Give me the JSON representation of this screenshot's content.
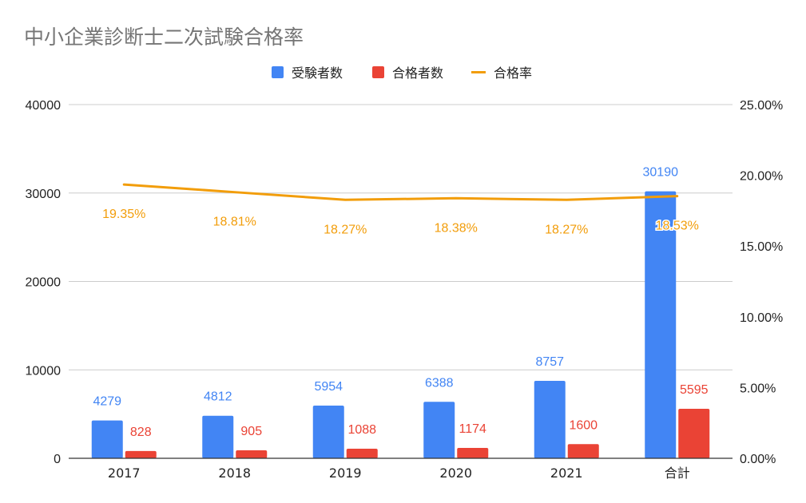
{
  "chart_data": {
    "type": "bar",
    "title": "中小企業診断士二次試験合格率",
    "categories": [
      "2017",
      "2018",
      "2019",
      "2020",
      "2021",
      "合計"
    ],
    "series": [
      {
        "name": "受験者数",
        "kind": "bar",
        "axis": "left",
        "color": "#4285f4",
        "values": [
          4279,
          4812,
          5954,
          6388,
          8757,
          30190
        ]
      },
      {
        "name": "合格者数",
        "kind": "bar",
        "axis": "left",
        "color": "#ea4335",
        "values": [
          828,
          905,
          1088,
          1174,
          1600,
          5595
        ]
      },
      {
        "name": "合格率",
        "kind": "line",
        "axis": "right",
        "color": "#f29d0a",
        "values": [
          19.35,
          18.81,
          18.27,
          18.38,
          18.27,
          18.53
        ]
      }
    ],
    "rate_labels": [
      "19.35%",
      "18.81%",
      "18.27%",
      "18.38%",
      "18.27%",
      "18.53%"
    ],
    "left_axis": {
      "ylim": [
        0,
        40000
      ],
      "ticks": [
        "0",
        "10000",
        "20000",
        "30000",
        "40000"
      ]
    },
    "right_axis": {
      "ylim": [
        0,
        25
      ],
      "ticks": [
        "0.00%",
        "5.00%",
        "10.00%",
        "15.00%",
        "20.00%",
        "25.00%"
      ]
    },
    "legend_position": "top-center",
    "grid": true
  }
}
